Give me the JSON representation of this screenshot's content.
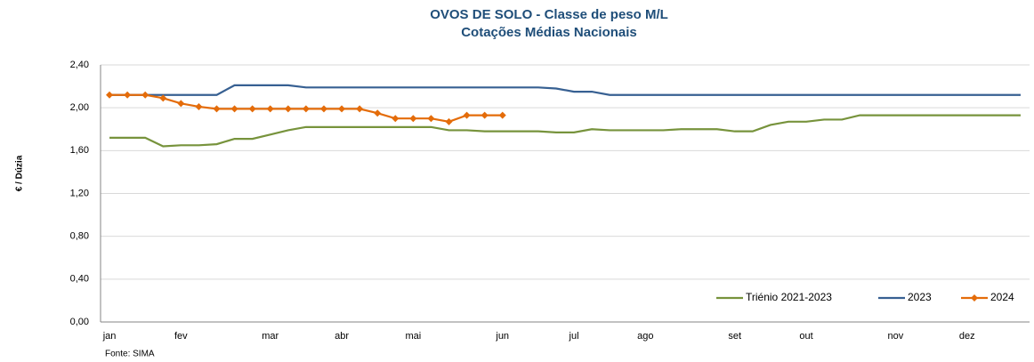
{
  "chart_data": {
    "type": "line",
    "title": "OVOS DE SOLO - Classe de peso M/L",
    "subtitle": "Cotações Médias Nacionais",
    "y_label": "€ / Dúzia",
    "source": "Fonte: SIMA",
    "categories": [
      "jan",
      null,
      null,
      null,
      "fev",
      null,
      null,
      null,
      null,
      "mar",
      null,
      null,
      null,
      "abr",
      null,
      null,
      null,
      "mai",
      null,
      null,
      null,
      null,
      "jun",
      null,
      null,
      null,
      "jul",
      null,
      null,
      null,
      "ago",
      null,
      null,
      null,
      null,
      "set",
      null,
      null,
      null,
      "out",
      null,
      null,
      null,
      null,
      "nov",
      null,
      null,
      null,
      "dez",
      null,
      null,
      null
    ],
    "series": [
      {
        "name": "Triénio 2021-2023",
        "color": "#77933c",
        "marker": false,
        "values": [
          1.72,
          1.72,
          1.72,
          1.64,
          1.65,
          1.65,
          1.66,
          1.71,
          1.71,
          1.75,
          1.79,
          1.82,
          1.82,
          1.82,
          1.82,
          1.82,
          1.82,
          1.82,
          1.82,
          1.79,
          1.79,
          1.78,
          1.78,
          1.78,
          1.78,
          1.77,
          1.77,
          1.8,
          1.79,
          1.79,
          1.79,
          1.79,
          1.8,
          1.8,
          1.8,
          1.78,
          1.78,
          1.84,
          1.87,
          1.87,
          1.89,
          1.89,
          1.93,
          1.93,
          1.93,
          1.93,
          1.93,
          1.93,
          1.93,
          1.93,
          1.93,
          1.93
        ]
      },
      {
        "name": "2023",
        "color": "#376092",
        "marker": false,
        "values": [
          2.12,
          2.12,
          2.12,
          2.12,
          2.12,
          2.12,
          2.12,
          2.21,
          2.21,
          2.21,
          2.21,
          2.19,
          2.19,
          2.19,
          2.19,
          2.19,
          2.19,
          2.19,
          2.19,
          2.19,
          2.19,
          2.19,
          2.19,
          2.19,
          2.19,
          2.18,
          2.15,
          2.15,
          2.12,
          2.12,
          2.12,
          2.12,
          2.12,
          2.12,
          2.12,
          2.12,
          2.12,
          2.12,
          2.12,
          2.12,
          2.12,
          2.12,
          2.12,
          2.12,
          2.12,
          2.12,
          2.12,
          2.12,
          2.12,
          2.12,
          2.12,
          2.12
        ]
      },
      {
        "name": "2024",
        "color": "#e46c0a",
        "marker": true,
        "values": [
          2.12,
          2.12,
          2.12,
          2.09,
          2.04,
          2.01,
          1.99,
          1.99,
          1.99,
          1.99,
          1.99,
          1.99,
          1.99,
          1.99,
          1.99,
          1.95,
          1.9,
          1.9,
          1.9,
          1.87,
          1.93,
          1.93,
          1.93,
          null,
          null,
          null,
          null,
          null,
          null,
          null,
          null,
          null,
          null,
          null,
          null,
          null,
          null,
          null,
          null,
          null,
          null,
          null,
          null,
          null,
          null,
          null,
          null,
          null,
          null,
          null,
          null,
          null
        ]
      }
    ],
    "ylim": [
      0,
      2.4
    ],
    "yticks": [
      {
        "value": 0,
        "label": "0,00"
      },
      {
        "value": 0.4,
        "label": "0,40"
      },
      {
        "value": 0.8,
        "label": "0,80"
      },
      {
        "value": 1.2,
        "label": "1,20"
      },
      {
        "value": 1.6,
        "label": "1,60"
      },
      {
        "value": 2.0,
        "label": "2,00"
      },
      {
        "value": 2.4,
        "label": "2,40"
      }
    ],
    "grid": true,
    "legend": "bottom-right"
  }
}
